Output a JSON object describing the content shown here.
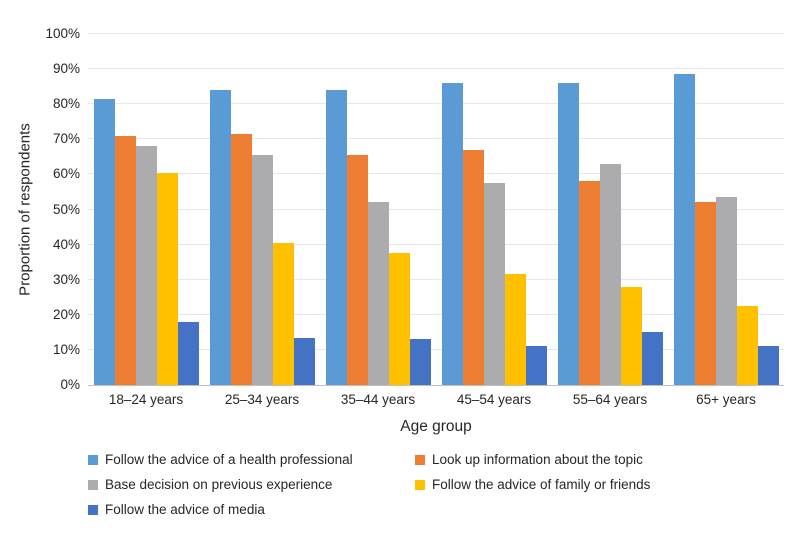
{
  "chart_data": {
    "type": "bar",
    "title": "",
    "xlabel": "Age group",
    "ylabel": "Proportion of respondents",
    "ylim": [
      0,
      100
    ],
    "ytick_step": 10,
    "yticks": [
      "0%",
      "10%",
      "20%",
      "30%",
      "40%",
      "50%",
      "60%",
      "70%",
      "80%",
      "90%",
      "100%"
    ],
    "grid": true,
    "legend_position": "bottom",
    "categories": [
      "18–24 years",
      "25–34 years",
      "35–44 years",
      "45–54 years",
      "55–64 years",
      "65+ years"
    ],
    "series": [
      {
        "name": "Follow the advice of a health professional",
        "color": "#5B9BD5",
        "values": [
          81.5,
          84,
          84,
          86,
          86,
          88.5
        ]
      },
      {
        "name": "Look up information about the topic",
        "color": "#ED7D31",
        "values": [
          71,
          71.5,
          65.5,
          67,
          58,
          52
        ]
      },
      {
        "name": "Base decision on previous experience",
        "color": "#ACACAF",
        "values": [
          68,
          65.5,
          52,
          57.5,
          63,
          53.5
        ]
      },
      {
        "name": "Follow the advice of family or friends",
        "color": "#FFC000",
        "values": [
          60.5,
          40.5,
          37.5,
          31.5,
          28,
          22.5
        ]
      },
      {
        "name": "Follow the advice of media",
        "color": "#4472C4",
        "values": [
          18,
          13.5,
          13,
          11,
          15,
          11
        ]
      }
    ]
  }
}
